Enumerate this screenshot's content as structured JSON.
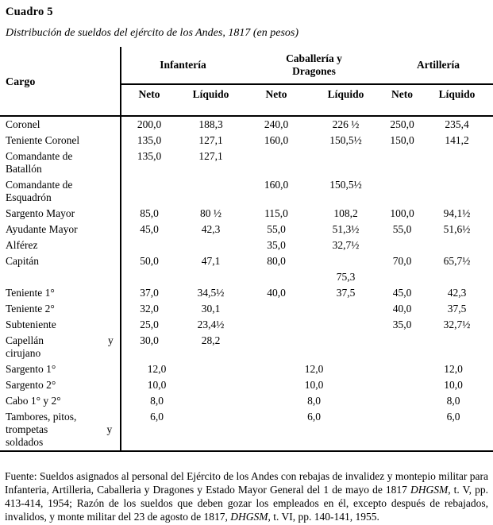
{
  "title": "Cuadro 5",
  "subtitle": "Distribución de sueldos del ejército de los Andes, 1817 (en pesos)",
  "table": {
    "cargo_header": "Cargo",
    "groups": [
      {
        "label": "Infantería"
      },
      {
        "label": "Caballería y\nDragones"
      },
      {
        "label": "Artillería"
      }
    ],
    "sub_headers": [
      "Neto",
      "Líquido"
    ],
    "rows": [
      {
        "cargo": "Coronel",
        "cells": [
          "200,0",
          "188,3",
          "240,0",
          "226 ½",
          "250,0",
          "235,4"
        ]
      },
      {
        "cargo": "Teniente Coronel",
        "cells": [
          "135,0",
          "127,1",
          "160,0",
          "150,5½",
          "150,0",
          "141,2"
        ]
      },
      {
        "cargo": "Comandante de\nBatallón",
        "cells": [
          "135,0",
          "127,1",
          "",
          "",
          "",
          ""
        ]
      },
      {
        "cargo": "Comandante de\nEsquadrón",
        "cells": [
          "",
          "",
          "160,0",
          "150,5½",
          "",
          ""
        ]
      },
      {
        "cargo": "Sargento Mayor",
        "cells": [
          "85,0",
          "80 ½",
          "115,0",
          "108,2",
          "100,0",
          "94,1½"
        ]
      },
      {
        "cargo": "Ayudante Mayor",
        "cells": [
          "45,0",
          "42,3",
          "55,0",
          "51,3½",
          "55,0",
          "51,6½"
        ]
      },
      {
        "cargo": "Alférez",
        "cells": [
          "",
          "",
          "35,0",
          "32,7½",
          "",
          ""
        ]
      },
      {
        "cargo": "Capitán",
        "cells": [
          "50,0",
          "47,1",
          "80,0",
          "",
          "70,0",
          "65,7½"
        ]
      },
      {
        "cargo": "",
        "cells": [
          "",
          "",
          "",
          "75,3",
          "",
          ""
        ]
      },
      {
        "cargo": "Teniente 1°",
        "cells": [
          "37,0",
          "34,5½",
          "40,0",
          "37,5",
          "45,0",
          "42,3"
        ]
      },
      {
        "cargo": "Teniente 2°",
        "cells": [
          "32,0",
          "30,1",
          "",
          "",
          "40,0",
          "37,5"
        ]
      },
      {
        "cargo": "Subteniente",
        "cells": [
          "25,0",
          "23,4½",
          "",
          "",
          "35,0",
          "32,7½"
        ]
      },
      {
        "cargo": "Capellán                        y\ncirujano",
        "cells": [
          "30,0",
          "28,2",
          "",
          "",
          "",
          ""
        ]
      },
      {
        "cargo": "Sargento 1°",
        "merged": true,
        "cells": [
          "12,0",
          "12,0",
          "12,0"
        ]
      },
      {
        "cargo": "Sargento 2°",
        "merged": true,
        "cells": [
          "10,0",
          "10,0",
          "10,0"
        ]
      },
      {
        "cargo": "Cabo 1° y 2°",
        "merged": true,
        "cells": [
          "8,0",
          "8,0",
          "8,0"
        ]
      },
      {
        "cargo": "Tambores, pitos,\ntrompetas                      y\nsoldados",
        "merged": true,
        "cells": [
          "6,0",
          "6,0",
          "6,0"
        ]
      }
    ]
  },
  "footer": {
    "p1": "Fuente: Sueldos asignados al personal del Ejército de los Andes con rebajas de invalidez y montepio militar para Infanteria, Artilleria, Caballeria y Dragones y Estado Mayor General del 1 de mayo de 1817 ",
    "i1": "DHGSM",
    "p2": ", t. V, pp. 413-414, 1954; Razón de los sueldos que deben gozar los empleados en él, excepto después de rebajados, invalidos, y monte militar del 23 de agosto de 1817, ",
    "i2": "DHGSM",
    "p3": ", t. VI, pp. 140-141, 1955."
  }
}
